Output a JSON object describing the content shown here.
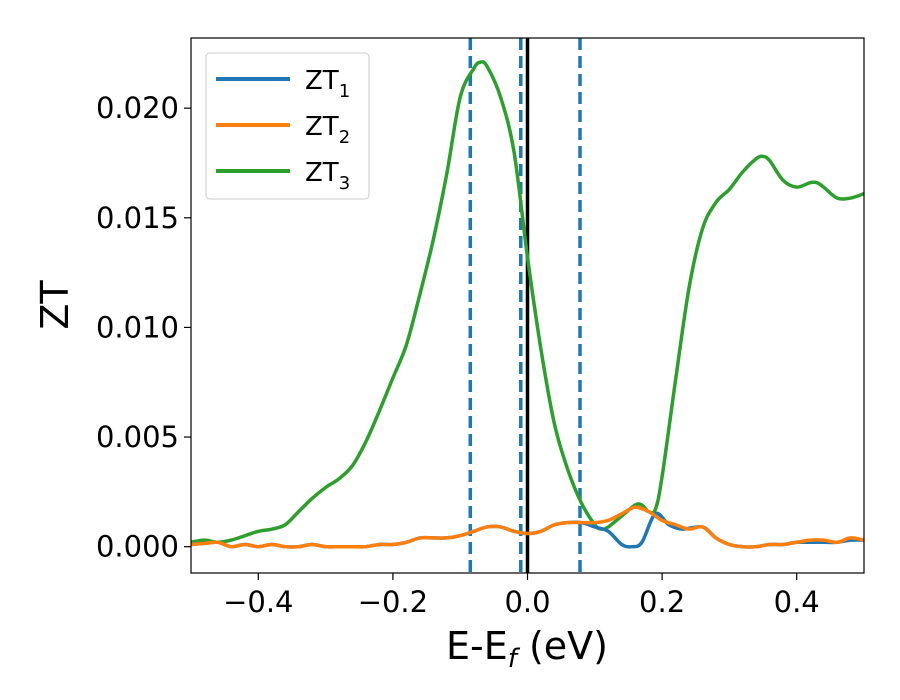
{
  "chart_data": {
    "type": "line",
    "xlabel": "E-E",
    "xlabel_sub": "f",
    "xlabel_unit": " (eV)",
    "ylabel": "ZT",
    "xlim": [
      -0.5,
      0.5
    ],
    "ylim": [
      -0.0012,
      0.0232
    ],
    "xticks": [
      -0.4,
      -0.2,
      0.0,
      0.2,
      0.4
    ],
    "xtick_labels": [
      "−0.4",
      "−0.2",
      "0.0",
      "0.2",
      "0.4"
    ],
    "yticks": [
      0.0,
      0.005,
      0.01,
      0.015,
      0.02
    ],
    "ytick_labels": [
      "0.000",
      "0.005",
      "0.010",
      "0.015",
      "0.020"
    ],
    "grid": false,
    "legend_position": "top-left",
    "vlines_dashed": [
      -0.085,
      -0.01,
      0.078
    ],
    "vline_solid": 0.0,
    "dashed_color": "#1f77b4",
    "solid_color": "#000000",
    "series": [
      {
        "name": "ZT",
        "sub": "1",
        "color": "#1f77b4",
        "x": [
          -0.5,
          -0.48,
          -0.46,
          -0.44,
          -0.42,
          -0.4,
          -0.38,
          -0.36,
          -0.34,
          -0.32,
          -0.3,
          -0.28,
          -0.26,
          -0.24,
          -0.22,
          -0.2,
          -0.18,
          -0.16,
          -0.14,
          -0.12,
          -0.1,
          -0.08,
          -0.06,
          -0.04,
          -0.02,
          0.0,
          0.02,
          0.04,
          0.06,
          0.08,
          0.1,
          0.12,
          0.14,
          0.155,
          0.17,
          0.19,
          0.21,
          0.23,
          0.26,
          0.28,
          0.3,
          0.32,
          0.34,
          0.36,
          0.38,
          0.4,
          0.42,
          0.44,
          0.46,
          0.48,
          0.5
        ],
        "y": [
          0.0001,
          0.00015,
          0.0002,
          0.0,
          0.0001,
          0.0,
          0.0001,
          0.0,
          0.0,
          0.0001,
          0.0,
          0.0,
          0.0,
          0.0,
          0.0001,
          0.0001,
          0.0002,
          0.0004,
          0.0004,
          0.0004,
          0.0005,
          0.0007,
          0.0009,
          0.0009,
          0.0007,
          0.0006,
          0.0007,
          0.001,
          0.0011,
          0.0011,
          0.0009,
          0.0007,
          0.0001,
          0.0,
          0.0002,
          0.0015,
          0.001,
          0.0008,
          0.0009,
          0.0004,
          0.0001,
          0.0,
          0.0,
          0.0001,
          0.0001,
          0.0002,
          0.0002,
          0.0002,
          0.0002,
          0.0003,
          0.0003
        ]
      },
      {
        "name": "ZT",
        "sub": "2",
        "color": "#ff7f0e",
        "x": [
          -0.5,
          -0.48,
          -0.46,
          -0.44,
          -0.42,
          -0.4,
          -0.38,
          -0.36,
          -0.34,
          -0.32,
          -0.3,
          -0.28,
          -0.26,
          -0.24,
          -0.22,
          -0.2,
          -0.18,
          -0.16,
          -0.14,
          -0.12,
          -0.1,
          -0.08,
          -0.06,
          -0.04,
          -0.02,
          0.0,
          0.02,
          0.04,
          0.06,
          0.08,
          0.1,
          0.12,
          0.14,
          0.16,
          0.18,
          0.2,
          0.22,
          0.24,
          0.26,
          0.28,
          0.3,
          0.32,
          0.34,
          0.36,
          0.38,
          0.4,
          0.42,
          0.44,
          0.46,
          0.48,
          0.5
        ],
        "y": [
          0.0001,
          0.00015,
          0.0002,
          0.0,
          0.0001,
          0.0,
          0.0001,
          0.0,
          0.0,
          0.0001,
          0.0,
          0.0,
          0.0,
          0.0,
          0.0001,
          0.0001,
          0.0002,
          0.0004,
          0.0004,
          0.0004,
          0.0005,
          0.0007,
          0.0009,
          0.0009,
          0.0007,
          0.0006,
          0.0007,
          0.001,
          0.0011,
          0.0011,
          0.0011,
          0.0012,
          0.0015,
          0.0018,
          0.0016,
          0.0012,
          0.001,
          0.0008,
          0.0009,
          0.0004,
          0.0001,
          0.0,
          0.0,
          0.0001,
          0.0001,
          0.0002,
          0.0003,
          0.0003,
          0.0002,
          0.0004,
          0.0003
        ]
      },
      {
        "name": "ZT",
        "sub": "3",
        "color": "#2ca02c",
        "x": [
          -0.5,
          -0.48,
          -0.46,
          -0.44,
          -0.42,
          -0.4,
          -0.38,
          -0.36,
          -0.34,
          -0.32,
          -0.3,
          -0.28,
          -0.26,
          -0.24,
          -0.22,
          -0.2,
          -0.18,
          -0.16,
          -0.14,
          -0.12,
          -0.1,
          -0.08,
          -0.07,
          -0.06,
          -0.04,
          -0.02,
          0.0,
          0.02,
          0.04,
          0.06,
          0.08,
          0.1,
          0.11,
          0.12,
          0.14,
          0.16,
          0.17,
          0.18,
          0.19,
          0.2,
          0.22,
          0.24,
          0.26,
          0.28,
          0.3,
          0.32,
          0.34,
          0.35,
          0.36,
          0.38,
          0.4,
          0.42,
          0.43,
          0.44,
          0.46,
          0.48,
          0.5
        ],
        "y": [
          0.0002,
          0.0003,
          0.0002,
          0.0003,
          0.0005,
          0.0007,
          0.0008,
          0.001,
          0.0016,
          0.0022,
          0.0027,
          0.0031,
          0.0037,
          0.0048,
          0.0062,
          0.0077,
          0.0092,
          0.0115,
          0.014,
          0.017,
          0.0205,
          0.0218,
          0.0221,
          0.0219,
          0.0205,
          0.018,
          0.0132,
          0.009,
          0.0056,
          0.0035,
          0.002,
          0.001,
          0.0008,
          0.0009,
          0.0014,
          0.0019,
          0.0019,
          0.0016,
          0.0017,
          0.0032,
          0.0076,
          0.0118,
          0.0145,
          0.0157,
          0.0163,
          0.0171,
          0.0177,
          0.0178,
          0.0176,
          0.0167,
          0.0164,
          0.0166,
          0.0166,
          0.0164,
          0.0159,
          0.0159,
          0.0161
        ]
      }
    ]
  }
}
